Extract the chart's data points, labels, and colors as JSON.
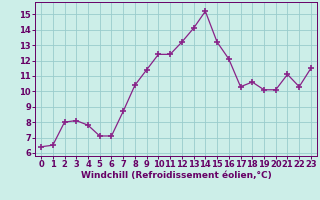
{
  "x": [
    0,
    1,
    2,
    3,
    4,
    5,
    6,
    7,
    8,
    9,
    10,
    11,
    12,
    13,
    14,
    15,
    16,
    17,
    18,
    19,
    20,
    21,
    22,
    23
  ],
  "y": [
    6.4,
    6.5,
    8.0,
    8.1,
    7.8,
    7.1,
    7.1,
    8.7,
    10.4,
    11.4,
    12.4,
    12.4,
    13.2,
    14.1,
    15.2,
    13.2,
    12.1,
    10.3,
    10.6,
    10.1,
    10.1,
    11.1,
    10.3,
    11.5
  ],
  "line_color": "#882288",
  "marker": "+",
  "markersize": 4,
  "markeredgewidth": 1.2,
  "linewidth": 0.9,
  "bg_color": "#cceee8",
  "grid_color": "#99cccc",
  "xlabel": "Windchill (Refroidissement éolien,°C)",
  "xlabel_fontsize": 6.5,
  "tick_fontsize": 6.0,
  "xlim": [
    -0.5,
    23.5
  ],
  "ylim": [
    5.8,
    15.8
  ],
  "yticks": [
    6,
    7,
    8,
    9,
    10,
    11,
    12,
    13,
    14,
    15
  ],
  "xticks": [
    0,
    1,
    2,
    3,
    4,
    5,
    6,
    7,
    8,
    9,
    10,
    11,
    12,
    13,
    14,
    15,
    16,
    17,
    18,
    19,
    20,
    21,
    22,
    23
  ],
  "label_color": "#660066",
  "spine_color": "#660066"
}
